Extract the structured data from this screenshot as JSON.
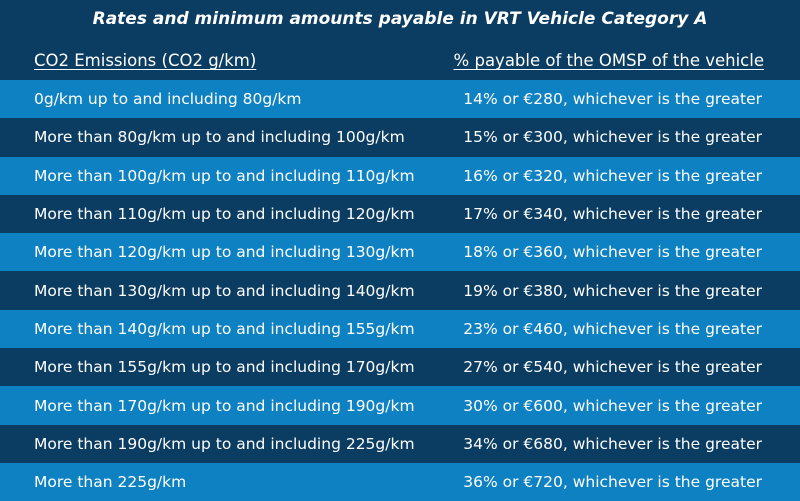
{
  "title": "Rates and minimum amounts payable in VRT Vehicle Category A",
  "headers": {
    "left": "CO2 Emissions (CO2 g/km)",
    "right": "% payable of the OMSP of the vehicle"
  },
  "rows": [
    {
      "emissions": "0g/km up to and including 80g/km",
      "payable": "14% or €280, whichever is the greater"
    },
    {
      "emissions": "More than 80g/km up to and including 100g/km",
      "payable": "15% or €300, whichever is the greater"
    },
    {
      "emissions": "More than 100g/km up to and including 110g/km",
      "payable": "16% or €320, whichever is the greater"
    },
    {
      "emissions": "More than 110g/km up to and including 120g/km",
      "payable": "17% or €340, whichever is the greater"
    },
    {
      "emissions": "More than 120g/km up to and including 130g/km",
      "payable": "18% or €360, whichever is the greater"
    },
    {
      "emissions": "More than 130g/km up to and including 140g/km",
      "payable": "19% or €380, whichever is the greater"
    },
    {
      "emissions": "More than 140g/km up to and including 155g/km",
      "payable": "23% or €460, whichever is the greater"
    },
    {
      "emissions": "More than 155g/km up to and including 170g/km",
      "payable": "27% or €540, whichever is the greater"
    },
    {
      "emissions": "More than 170g/km up to and including 190g/km",
      "payable": "30% or €600, whichever is the greater"
    },
    {
      "emissions": "More than 190g/km up to and including 225g/km",
      "payable": "34% or €680, whichever is the greater"
    },
    {
      "emissions": "More than 225g/km",
      "payable": "36% or €720, whichever is the greater"
    }
  ],
  "colors": {
    "background_dark": "#0b3c62",
    "row_light": "#0e81c2",
    "text": "#ffffff"
  }
}
